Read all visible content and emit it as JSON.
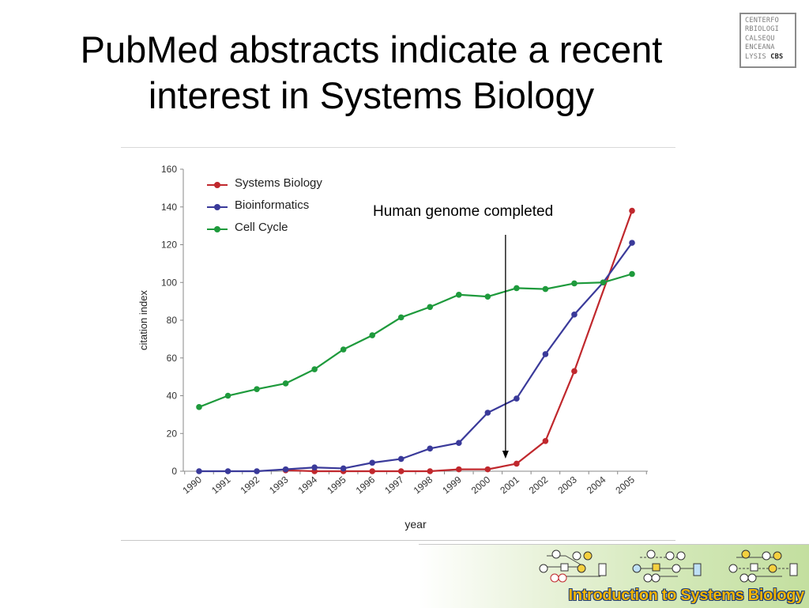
{
  "slide": {
    "title_line1": "PubMed abstracts indicate a recent",
    "title_line2": "interest in Systems Biology"
  },
  "logo": {
    "rows": [
      "CENTERFO",
      "RBIOLOGI",
      "CALSEQU",
      "ENCEANA",
      "LYSIS"
    ],
    "mark": "CBS"
  },
  "annotation": {
    "text": "Human genome completed",
    "year": 2001
  },
  "footer": {
    "text": "Introduction to Systems Biology",
    "icon": "network-diagram-icon"
  },
  "chart_data": {
    "type": "line",
    "x": [
      1990,
      1991,
      1992,
      1993,
      1994,
      1995,
      1996,
      1997,
      1998,
      1999,
      2000,
      2001,
      2002,
      2003,
      2004,
      2005
    ],
    "x_tick_labels": [
      "1990",
      "1991",
      "1992",
      "1993",
      "1994",
      "1995",
      "1996",
      "1997",
      "1998",
      "1999",
      "2000",
      "2001",
      "2002",
      "2003",
      "2004",
      "2005"
    ],
    "xlabel": "year",
    "ylabel": "citation index",
    "ylim": [
      0,
      160
    ],
    "y_ticks": [
      0,
      20,
      40,
      60,
      80,
      100,
      120,
      140,
      160
    ],
    "grid": false,
    "legend_position": "top-left",
    "series": [
      {
        "name": "Systems Biology",
        "color": "#c0282d",
        "x": [
          1993,
          1994,
          1995,
          1996,
          1997,
          1998,
          1999,
          2000,
          2001,
          2002,
          2003,
          2005
        ],
        "values": [
          0.5,
          0,
          0,
          0,
          0,
          0,
          1,
          1,
          4,
          16,
          53,
          138
        ]
      },
      {
        "name": "Bioinformatics",
        "color": "#3a3a9a",
        "x": [
          1990,
          1991,
          1992,
          1993,
          1994,
          1995,
          1996,
          1997,
          1998,
          1999,
          2000,
          2001,
          2002,
          2003,
          2004,
          2005
        ],
        "values": [
          0,
          0,
          0,
          1,
          2,
          1.5,
          4.5,
          6.5,
          12,
          15,
          31,
          38.5,
          62,
          83,
          100,
          121
        ]
      },
      {
        "name": "Cell Cycle",
        "color": "#1e9a3c",
        "x": [
          1990,
          1991,
          1992,
          1993,
          1994,
          1995,
          1996,
          1997,
          1998,
          1999,
          2000,
          2001,
          2002,
          2003,
          2004,
          2005
        ],
        "values": [
          34,
          40,
          43.5,
          46.5,
          54,
          64.5,
          72,
          81.5,
          87,
          93.5,
          92.5,
          97,
          96.5,
          99.5,
          100,
          104.5
        ]
      }
    ]
  }
}
